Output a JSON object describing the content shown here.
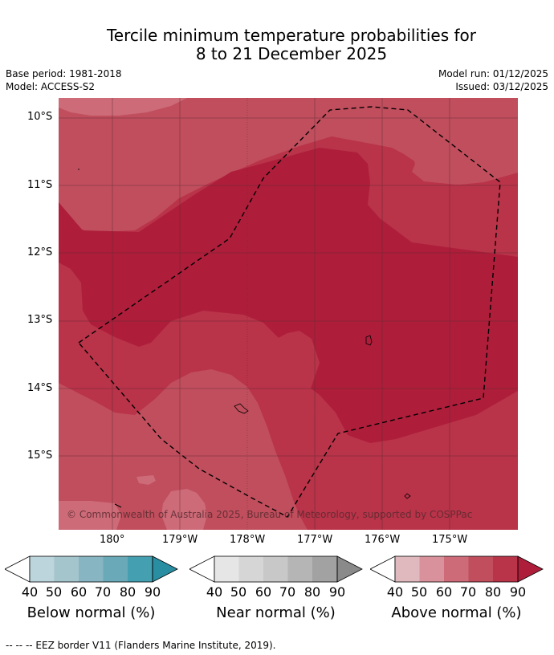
{
  "title": {
    "line1": "Tercile minimum temperature probabilities for",
    "line2": "8 to 21 December 2025"
  },
  "meta": {
    "base_period": "Base period: 1981-2018",
    "model": "Model: ACCESS-S2",
    "model_run": "Model run: 01/12/2025",
    "issued": "Issued: 03/12/2025"
  },
  "map": {
    "lat_labels": [
      "10°S",
      "11°S",
      "12°S",
      "13°S",
      "14°S",
      "15°S"
    ],
    "lon_labels": [
      "180°",
      "179°W",
      "178°W",
      "177°W",
      "176°W",
      "175°W"
    ],
    "copyright": "© Commonwealth of Australia 2025, Bureau of Meteorology, supported by COSPPac",
    "colors": {
      "above_60_70": "#cd6b78",
      "above_70_80": "#c04e5d",
      "above_80_90": "#b93349",
      "above_90": "#ae1e3b"
    }
  },
  "colorbars": [
    {
      "label": "Below normal (%)",
      "ticks": [
        "40",
        "50",
        "60",
        "70",
        "80",
        "90"
      ],
      "colors": [
        "#bcd4dc",
        "#a5c5cd",
        "#88b5c2",
        "#69a9b8",
        "#44a0b1",
        "#2a8ea3"
      ]
    },
    {
      "label": "Near normal (%)",
      "ticks": [
        "40",
        "50",
        "60",
        "70",
        "80",
        "90"
      ],
      "colors": [
        "#e6e6e6",
        "#d6d6d6",
        "#c8c8c8",
        "#b5b5b5",
        "#a2a2a2",
        "#8a8a8a"
      ]
    },
    {
      "label": "Above normal (%)",
      "ticks": [
        "40",
        "50",
        "60",
        "70",
        "80",
        "90"
      ],
      "colors": [
        "#e0b9be",
        "#d9929b",
        "#cd6b78",
        "#c04e5d",
        "#b93349",
        "#ae1e3b"
      ]
    }
  ],
  "footnote": "-- -- -- EEZ border V11 (Flanders Marine Institute, 2019)."
}
